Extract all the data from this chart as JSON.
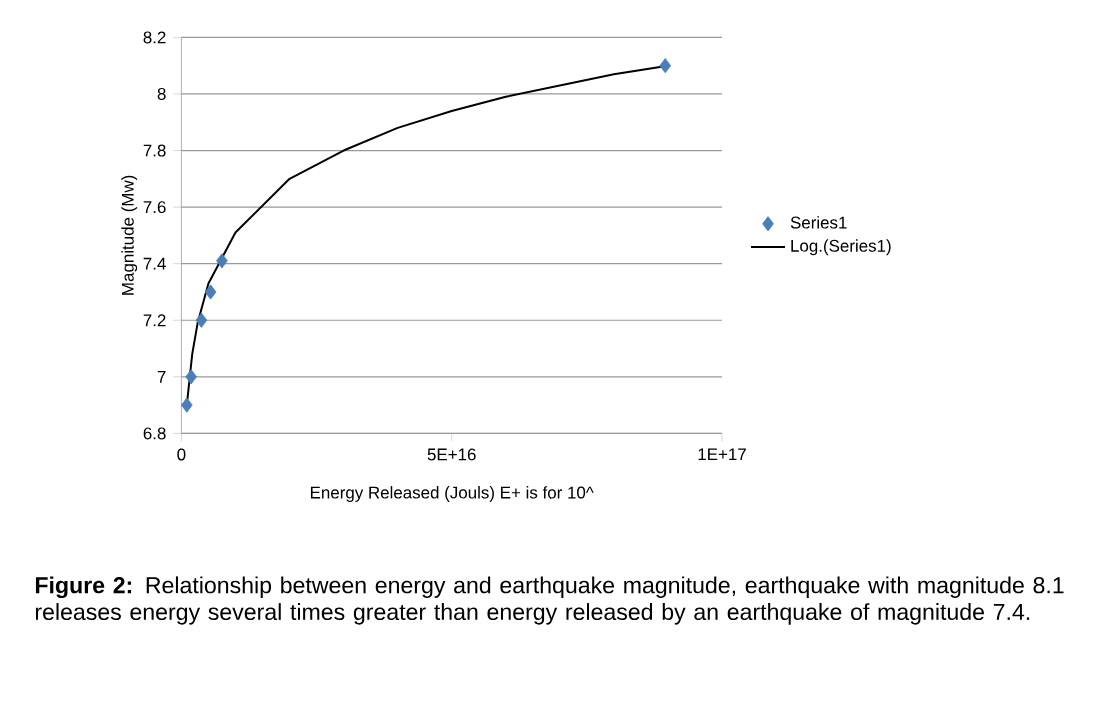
{
  "chart_data": {
    "type": "scatter",
    "xlabel": "Energy Released (Jouls) E+ is for 10^",
    "ylabel": "Magnitude (Mw)",
    "xlim": [
      0,
      1e+17
    ],
    "xticks": [
      0,
      {
        "value": 5e+16,
        "label": "5E+16"
      },
      {
        "value": 1e+17,
        "label": "1E+17"
      }
    ],
    "ylim": [
      6.8,
      8.2
    ],
    "yticks": [
      6.8,
      7,
      7.2,
      7.4,
      7.6,
      7.8,
      8,
      8.2
    ],
    "grid": "y",
    "legend": "right",
    "series": [
      {
        "name": "Series1",
        "marker": "diamond",
        "color": "#4a7ebb",
        "x": [
          1000000000000000.0,
          1800000000000000.0,
          3700000000000000.0,
          5400000000000000.0,
          7500000000000000.0,
          8.95e+16
        ],
        "values": [
          6.9,
          7.0,
          7.2,
          7.3,
          7.41,
          8.1
        ]
      },
      {
        "name": "Log.(Series1)",
        "type": "line",
        "marker": "none",
        "color": "#000000",
        "x": [
          1000000000000000.0,
          2000000000000000.0,
          3000000000000000.0,
          5000000000000000.0,
          1e+16,
          2e+16,
          3e+16,
          4e+16,
          5e+16,
          6e+16,
          7e+16,
          8e+16,
          9e+16
        ],
        "values": [
          6.9,
          7.08,
          7.19,
          7.33,
          7.51,
          7.7,
          7.8,
          7.88,
          7.94,
          7.99,
          8.03,
          8.07,
          8.1
        ]
      }
    ],
    "annotations": [
      "**Figure 2:** Relationship between energy and earthquake magnitude, earthquake with magnitude 8.1 releases energy several times greater than energy released by an earthquake of magnitude 7.4."
    ]
  }
}
